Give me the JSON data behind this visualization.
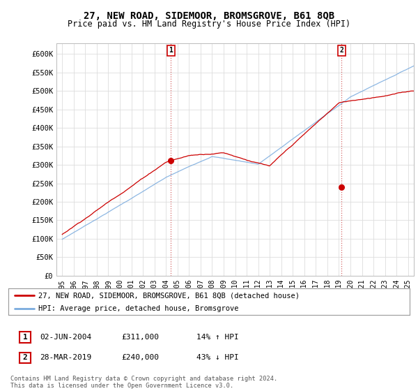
{
  "title": "27, NEW ROAD, SIDEMOOR, BROMSGROVE, B61 8QB",
  "subtitle": "Price paid vs. HM Land Registry's House Price Index (HPI)",
  "title_fontsize": 10,
  "subtitle_fontsize": 8.5,
  "ylabel_ticks": [
    "£0",
    "£50K",
    "£100K",
    "£150K",
    "£200K",
    "£250K",
    "£300K",
    "£350K",
    "£400K",
    "£450K",
    "£500K",
    "£550K",
    "£600K"
  ],
  "ytick_values": [
    0,
    50000,
    100000,
    150000,
    200000,
    250000,
    300000,
    350000,
    400000,
    450000,
    500000,
    550000,
    600000
  ],
  "ylim": [
    0,
    630000
  ],
  "xlim_start": 1994.5,
  "xlim_end": 2025.5,
  "xtick_years": [
    1995,
    1996,
    1997,
    1998,
    1999,
    2000,
    2001,
    2002,
    2003,
    2004,
    2005,
    2006,
    2007,
    2008,
    2009,
    2010,
    2011,
    2012,
    2013,
    2014,
    2015,
    2016,
    2017,
    2018,
    2019,
    2020,
    2021,
    2022,
    2023,
    2024,
    2025
  ],
  "marker1_x": 2004.42,
  "marker1_y": 311000,
  "marker2_x": 2019.23,
  "marker2_y": 240000,
  "legend_line1": "27, NEW ROAD, SIDEMOOR, BROMSGROVE, B61 8QB (detached house)",
  "legend_line2": "HPI: Average price, detached house, Bromsgrove",
  "line_color_red": "#cc0000",
  "line_color_blue": "#7aabde",
  "marker1_date": "02-JUN-2004",
  "marker1_price": "£311,000",
  "marker1_hpi": "14% ↑ HPI",
  "marker2_date": "28-MAR-2019",
  "marker2_price": "£240,000",
  "marker2_hpi": "43% ↓ HPI",
  "footer": "Contains HM Land Registry data © Crown copyright and database right 2024.\nThis data is licensed under the Open Government Licence v3.0.",
  "background_color": "#ffffff",
  "grid_color": "#dddddd"
}
